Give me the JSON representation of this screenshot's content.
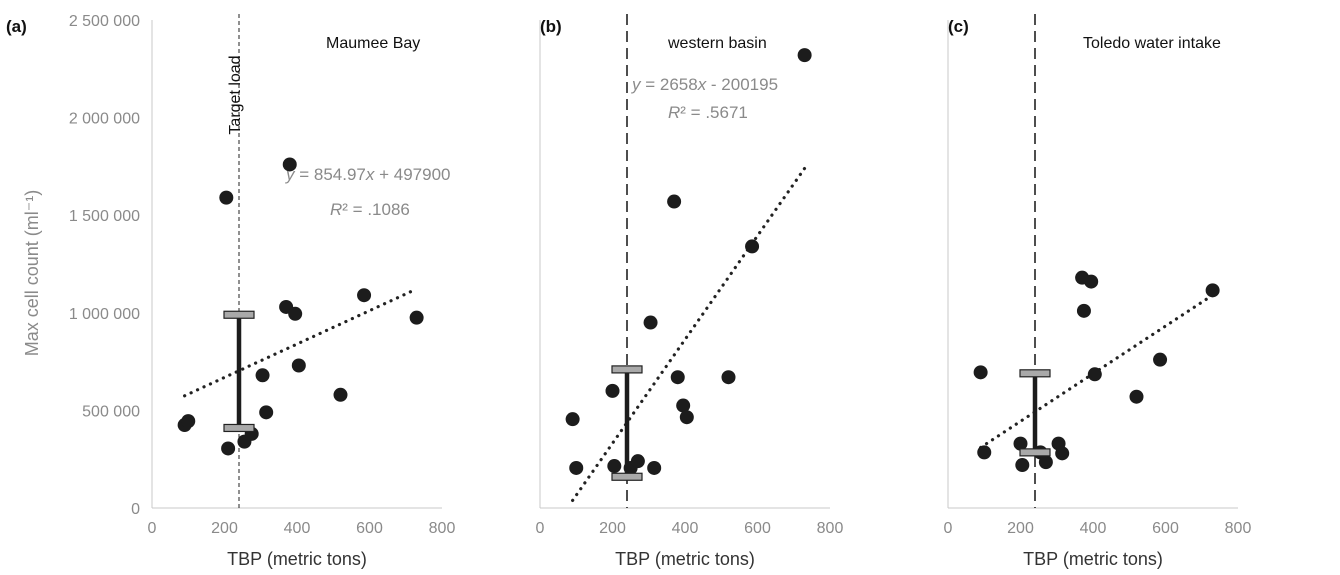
{
  "figure": {
    "ylabel": "Max cell count (ml⁻¹)",
    "target_label": "Target load"
  },
  "chart_data": [
    {
      "type": "scatter",
      "panel": "(a)",
      "site": "Maumee Bay",
      "xlabel": "TBP (metric tons)",
      "ylabel": "Max cell count (ml⁻¹)",
      "xlim": [
        0,
        800
      ],
      "ylim": [
        0,
        2500000
      ],
      "x_ticks": [
        "0",
        "200",
        "400",
        "600",
        "800"
      ],
      "y_ticks": [
        "0",
        "500 000",
        "1 000 000",
        "1 500 000",
        "2 000 000",
        "2 500 000"
      ],
      "target_load_x": 240,
      "target_line_style": "short-dash",
      "equation": {
        "y": "y",
        "rest": " = 854.97",
        "x": "x",
        "tail": " + 497900"
      },
      "r2": {
        "r": "R",
        "rest": "² = .1086"
      },
      "trend": {
        "slope": 854.97,
        "intercept": 497900,
        "x_range": [
          90,
          730
        ]
      },
      "range_bar": {
        "x": 240,
        "low": 410000,
        "high": 990000
      },
      "points": [
        {
          "x": 90,
          "y": 425000
        },
        {
          "x": 100,
          "y": 445000
        },
        {
          "x": 205,
          "y": 1590000
        },
        {
          "x": 210,
          "y": 305000
        },
        {
          "x": 255,
          "y": 340000
        },
        {
          "x": 275,
          "y": 380000
        },
        {
          "x": 305,
          "y": 680000
        },
        {
          "x": 315,
          "y": 490000
        },
        {
          "x": 370,
          "y": 1030000
        },
        {
          "x": 380,
          "y": 1760000
        },
        {
          "x": 395,
          "y": 995000
        },
        {
          "x": 405,
          "y": 730000
        },
        {
          "x": 520,
          "y": 580000
        },
        {
          "x": 585,
          "y": 1090000
        },
        {
          "x": 730,
          "y": 975000
        }
      ]
    },
    {
      "type": "scatter",
      "panel": "(b)",
      "site": "western basin",
      "xlabel": "TBP (metric tons)",
      "xlim": [
        0,
        800
      ],
      "ylim": [
        0,
        2500000
      ],
      "x_ticks": [
        "0",
        "200",
        "400",
        "600",
        "800"
      ],
      "target_load_x": 240,
      "target_line_style": "long-dash",
      "equation": {
        "y": "y",
        "rest": " = 2658",
        "x": "x",
        "tail": " - 200195"
      },
      "r2": {
        "r": "R",
        "rest": "² = .5671"
      },
      "trend": {
        "slope": 2658,
        "intercept": -200195,
        "x_range": [
          90,
          730
        ]
      },
      "range_bar": {
        "x": 240,
        "low": 160000,
        "high": 710000
      },
      "points": [
        {
          "x": 90,
          "y": 455000
        },
        {
          "x": 100,
          "y": 205000
        },
        {
          "x": 200,
          "y": 600000
        },
        {
          "x": 205,
          "y": 215000
        },
        {
          "x": 250,
          "y": 205000
        },
        {
          "x": 270,
          "y": 240000
        },
        {
          "x": 305,
          "y": 950000
        },
        {
          "x": 315,
          "y": 205000
        },
        {
          "x": 370,
          "y": 1570000
        },
        {
          "x": 380,
          "y": 670000
        },
        {
          "x": 395,
          "y": 525000
        },
        {
          "x": 405,
          "y": 465000
        },
        {
          "x": 520,
          "y": 670000
        },
        {
          "x": 585,
          "y": 1340000
        },
        {
          "x": 730,
          "y": 2320000
        }
      ]
    },
    {
      "type": "scatter",
      "panel": "(c)",
      "site": "Toledo water intake",
      "xlabel": "TBP (metric tons)",
      "xlim": [
        0,
        800
      ],
      "ylim": [
        0,
        2500000
      ],
      "x_ticks": [
        "0",
        "200",
        "400",
        "600",
        "800"
      ],
      "target_load_x": 240,
      "target_line_style": "long-dash",
      "trend": {
        "slope": 1220,
        "intercept": 200000,
        "x_range": [
          90,
          730
        ]
      },
      "range_bar": {
        "x": 240,
        "low": 285000,
        "high": 690000
      },
      "points": [
        {
          "x": 90,
          "y": 695000
        },
        {
          "x": 100,
          "y": 285000
        },
        {
          "x": 200,
          "y": 330000
        },
        {
          "x": 205,
          "y": 220000
        },
        {
          "x": 255,
          "y": 285000
        },
        {
          "x": 270,
          "y": 235000
        },
        {
          "x": 305,
          "y": 330000
        },
        {
          "x": 315,
          "y": 280000
        },
        {
          "x": 370,
          "y": 1180000
        },
        {
          "x": 375,
          "y": 1010000
        },
        {
          "x": 395,
          "y": 1160000
        },
        {
          "x": 405,
          "y": 685000
        },
        {
          "x": 520,
          "y": 570000
        },
        {
          "x": 585,
          "y": 760000
        },
        {
          "x": 730,
          "y": 1115000
        }
      ]
    }
  ]
}
